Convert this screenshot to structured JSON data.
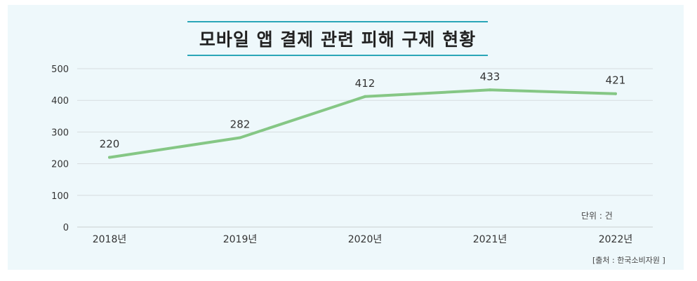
{
  "chart_data": {
    "type": "line",
    "title": "모바일 앱 결제 관련 피해 구제 현황",
    "categories": [
      "2018년",
      "2019년",
      "2020년",
      "2021년",
      "2022년"
    ],
    "series": [
      {
        "values": [
          220,
          282,
          412,
          433,
          421
        ],
        "color": "#85c785"
      }
    ],
    "ylim": [
      0,
      500
    ],
    "yticks": [
      0,
      100,
      200,
      300,
      400,
      500
    ],
    "grid": true,
    "unit_label": "단위 : 건",
    "source": "[출처 : 한국소비자원 ]"
  }
}
